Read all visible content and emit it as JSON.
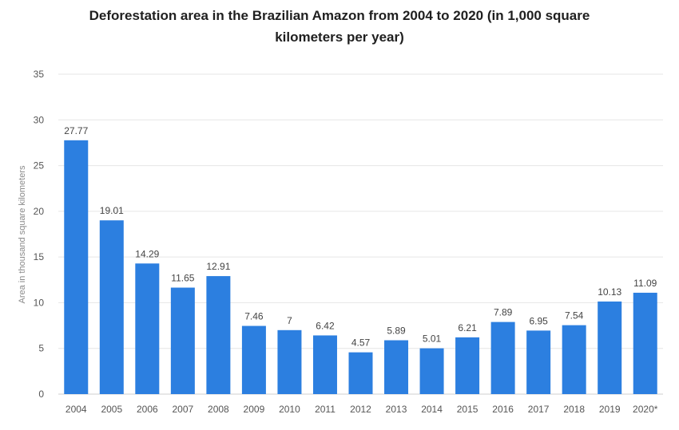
{
  "chart_data": {
    "type": "bar",
    "title_lines": [
      "Deforestation area in the Brazilian Amazon from 2004 to 2020 (in 1,000 square",
      "kilometers per year)"
    ],
    "xlabel": "",
    "ylabel": "Area in thousand square kilometers",
    "categories": [
      "2004",
      "2005",
      "2006",
      "2007",
      "2008",
      "2009",
      "2010",
      "2011",
      "2012",
      "2013",
      "2014",
      "2015",
      "2016",
      "2017",
      "2018",
      "2019",
      "2020*"
    ],
    "values": [
      27.77,
      19.01,
      14.29,
      11.65,
      12.91,
      7.46,
      7,
      6.42,
      4.57,
      5.89,
      5.01,
      6.21,
      7.89,
      6.95,
      7.54,
      10.13,
      11.09
    ],
    "value_labels": [
      "27.77",
      "19.01",
      "14.29",
      "11.65",
      "12.91",
      "7.46",
      "7",
      "6.42",
      "4.57",
      "5.89",
      "5.01",
      "6.21",
      "7.89",
      "6.95",
      "7.54",
      "10.13",
      "11.09"
    ],
    "ylim": [
      0,
      35
    ],
    "yticks": [
      0,
      5,
      10,
      15,
      20,
      25,
      30,
      35
    ],
    "grid": true,
    "legend": "none",
    "bar_color": "#2c7fe0"
  }
}
